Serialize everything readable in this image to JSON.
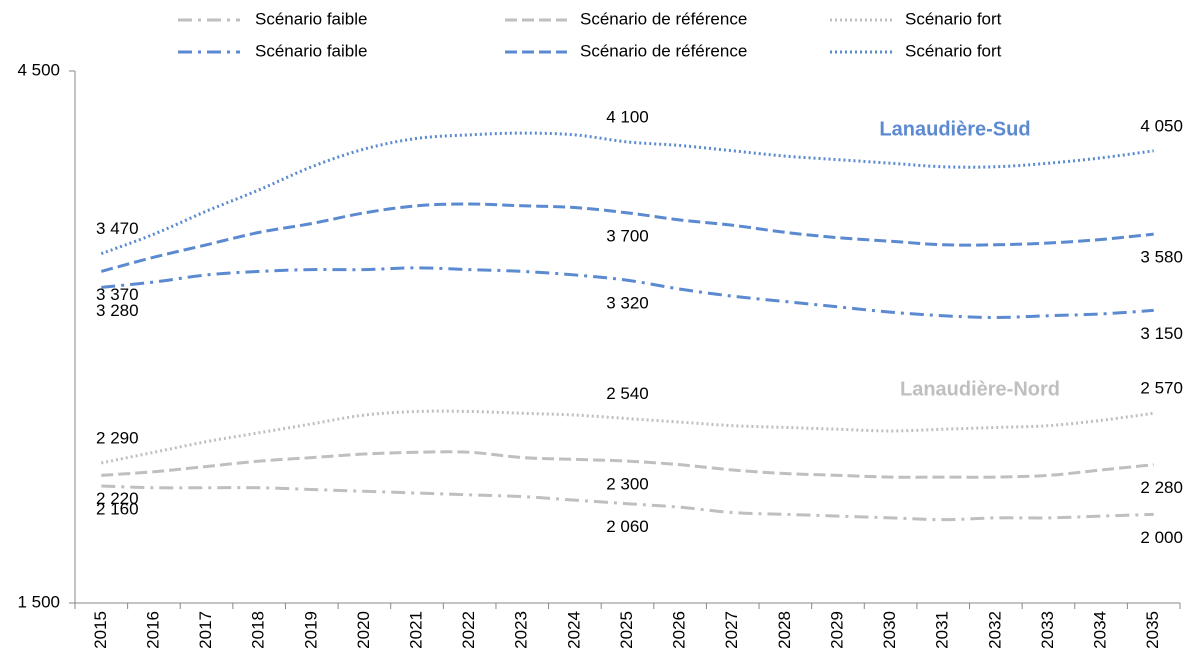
{
  "chart_data": {
    "type": "line",
    "categories": [
      "2015",
      "2016",
      "2017",
      "2018",
      "2019",
      "2020",
      "2021",
      "2022",
      "2023",
      "2024",
      "2025",
      "2026",
      "2027",
      "2028",
      "2029",
      "2030",
      "2031",
      "2032",
      "2033",
      "2034",
      "2035"
    ],
    "series": [
      {
        "name": "Scénario faible",
        "color": "#bfbfbf",
        "dash": "dashdot",
        "label_side": "below",
        "values": [
          2160,
          2150,
          2150,
          2150,
          2140,
          2130,
          2120,
          2110,
          2100,
          2080,
          2060,
          2040,
          2010,
          2000,
          1990,
          1980,
          1970,
          1980,
          1980,
          1990,
          2000
        ],
        "value_labels": [
          "2 160",
          null,
          null,
          null,
          null,
          null,
          null,
          null,
          null,
          null,
          "2 060",
          null,
          null,
          null,
          null,
          null,
          null,
          null,
          null,
          null,
          "2 000"
        ]
      },
      {
        "name": "Scénario de référence",
        "color": "#bfbfbf",
        "dash": "dash",
        "label_side": "below",
        "values": [
          2220,
          2240,
          2270,
          2300,
          2320,
          2340,
          2350,
          2350,
          2320,
          2310,
          2300,
          2280,
          2250,
          2230,
          2220,
          2210,
          2210,
          2210,
          2220,
          2250,
          2280
        ],
        "value_labels": [
          "2 220",
          null,
          null,
          null,
          null,
          null,
          null,
          null,
          null,
          null,
          "2 300",
          null,
          null,
          null,
          null,
          null,
          null,
          null,
          null,
          null,
          "2 280"
        ]
      },
      {
        "name": "Scénario fort",
        "color": "#bfbfbf",
        "dash": "dot",
        "label_side": "above",
        "values": [
          2290,
          2350,
          2410,
          2460,
          2510,
          2560,
          2580,
          2580,
          2570,
          2560,
          2540,
          2520,
          2500,
          2490,
          2480,
          2470,
          2480,
          2490,
          2500,
          2530,
          2570
        ],
        "value_labels": [
          "2 290",
          null,
          null,
          null,
          null,
          null,
          null,
          null,
          null,
          null,
          "2 540",
          null,
          null,
          null,
          null,
          null,
          null,
          null,
          null,
          null,
          "2 570"
        ]
      },
      {
        "name": "Scénario faible",
        "color": "#5b8ad0",
        "dash": "dashdot",
        "label_side": "below",
        "values": [
          3280,
          3310,
          3350,
          3370,
          3380,
          3380,
          3390,
          3380,
          3370,
          3350,
          3320,
          3270,
          3230,
          3200,
          3170,
          3140,
          3120,
          3110,
          3120,
          3130,
          3150
        ],
        "value_labels": [
          "3 280",
          null,
          null,
          null,
          null,
          null,
          null,
          null,
          null,
          null,
          "3 320",
          null,
          null,
          null,
          null,
          null,
          null,
          null,
          null,
          null,
          "3 150"
        ]
      },
      {
        "name": "Scénario de référence",
        "color": "#5b8ad0",
        "dash": "dash",
        "label_side": "below",
        "values": [
          3370,
          3450,
          3520,
          3590,
          3640,
          3700,
          3740,
          3750,
          3740,
          3730,
          3700,
          3660,
          3630,
          3590,
          3560,
          3540,
          3520,
          3520,
          3530,
          3550,
          3580
        ],
        "value_labels": [
          "3 370",
          null,
          null,
          null,
          null,
          null,
          null,
          null,
          null,
          null,
          "3 700",
          null,
          null,
          null,
          null,
          null,
          null,
          null,
          null,
          null,
          "3 580"
        ]
      },
      {
        "name": "Scénario fort",
        "color": "#5b8ad0",
        "dash": "dot",
        "label_side": "above",
        "values": [
          3470,
          3580,
          3710,
          3830,
          3960,
          4060,
          4120,
          4140,
          4150,
          4140,
          4100,
          4080,
          4050,
          4020,
          4000,
          3980,
          3960,
          3960,
          3980,
          4010,
          4050
        ],
        "value_labels": [
          "3 470",
          null,
          null,
          null,
          null,
          null,
          null,
          null,
          null,
          null,
          "4 100",
          null,
          null,
          null,
          null,
          null,
          null,
          null,
          null,
          null,
          "4 050"
        ]
      }
    ],
    "annotations": [
      {
        "text": "Lanaudière-Sud",
        "color": "#5b8ad0"
      },
      {
        "text": "Lanaudière-Nord",
        "color": "#bfbfbf"
      }
    ],
    "ylim": [
      1500,
      4500
    ],
    "yticks": [
      {
        "value": 1500,
        "label": "1 500"
      },
      {
        "value": 4500,
        "label": "4 500"
      }
    ],
    "grid": false
  }
}
